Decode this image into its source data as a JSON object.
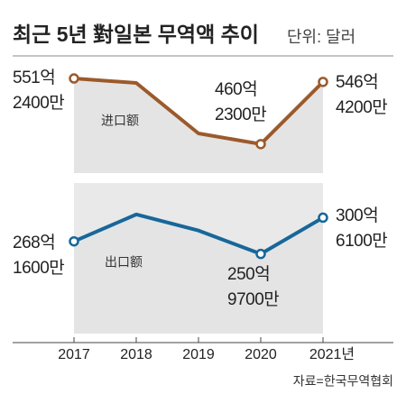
{
  "chart_data": {
    "type": "line",
    "title": "최근 5년 對일본 무역액 추이",
    "subtitle": "단위: 달러",
    "source": "자료=한국무역협회",
    "categories": [
      "2017",
      "2018",
      "2019",
      "2020",
      "2021년"
    ],
    "series": [
      {
        "name": "进口额",
        "color": "#9b5a2c",
        "ylim": [
          420,
          570
        ],
        "values": [
          551.24,
          545,
          475,
          460.23,
          546.42
        ],
        "value_labels": [
          [
            "551억",
            "2400만"
          ],
          null,
          null,
          [
            "460억",
            "2300만"
          ],
          [
            "546억",
            "4200만"
          ]
        ]
      },
      {
        "name": "出口额",
        "color": "#17679a",
        "ylim": [
          142,
          348
        ],
        "values": [
          268.16,
          305,
          283,
          250.97,
          300.61
        ],
        "value_labels": [
          [
            "268억",
            "1600만"
          ],
          null,
          null,
          [
            "250억",
            "9700만"
          ],
          [
            "300억",
            "6100만"
          ]
        ]
      }
    ]
  }
}
